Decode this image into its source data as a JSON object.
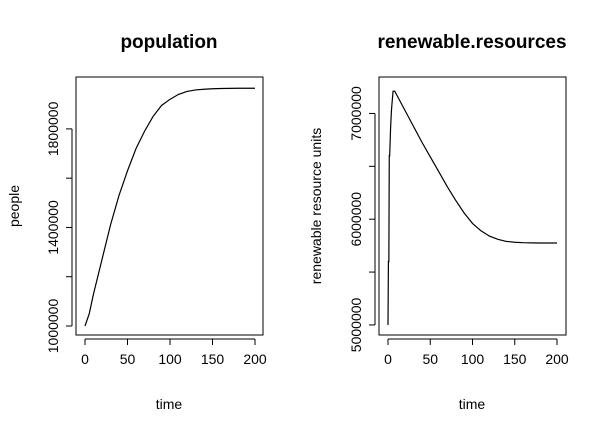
{
  "chart_data": [
    {
      "type": "line",
      "title": "population",
      "xlabel": "time",
      "ylabel": "people",
      "xlim": [
        0,
        200
      ],
      "ylim": [
        1000000,
        1970000
      ],
      "x_ticks": [
        0,
        50,
        100,
        150,
        200
      ],
      "y_ticks": [
        1000000,
        1400000,
        1800000
      ],
      "y_tick_labels": [
        "1000000",
        "1400000",
        "1800000"
      ],
      "series": [
        {
          "x": [
            0,
            5,
            10,
            20,
            30,
            40,
            50,
            60,
            70,
            80,
            90,
            100,
            110,
            120,
            130,
            140,
            150,
            160,
            170,
            180,
            190,
            200
          ],
          "values": [
            1000000,
            1050000,
            1130000,
            1270000,
            1410000,
            1530000,
            1630000,
            1720000,
            1790000,
            1850000,
            1895000,
            1920000,
            1940000,
            1952000,
            1958000,
            1961000,
            1963000,
            1964000,
            1964500,
            1965000,
            1965000,
            1965000
          ]
        }
      ]
    },
    {
      "type": "line",
      "title": "renewable.resources",
      "xlabel": "time",
      "ylabel": "renewable resource units",
      "xlim": [
        0,
        200
      ],
      "ylim": [
        4990000,
        7250000
      ],
      "x_ticks": [
        0,
        50,
        100,
        150,
        200
      ],
      "y_ticks": [
        5000000,
        6000000,
        7000000
      ],
      "y_tick_labels": [
        "5000000",
        "6000000",
        "7000000"
      ],
      "series": [
        {
          "x": [
            0,
            0.5,
            1,
            1.5,
            2,
            3,
            4,
            5,
            6,
            8,
            10,
            20,
            30,
            40,
            50,
            60,
            70,
            80,
            90,
            100,
            110,
            120,
            130,
            140,
            150,
            160,
            170,
            180,
            190,
            200
          ],
          "values": [
            5000000,
            5600000,
            5600000,
            6600000,
            6600000,
            6850000,
            7020000,
            7120000,
            7210000,
            7210000,
            7180000,
            7030000,
            6880000,
            6730000,
            6590000,
            6450000,
            6310000,
            6180000,
            6060000,
            5960000,
            5890000,
            5840000,
            5810000,
            5790000,
            5782000,
            5778000,
            5776000,
            5775000,
            5775000,
            5775000
          ]
        }
      ]
    }
  ]
}
